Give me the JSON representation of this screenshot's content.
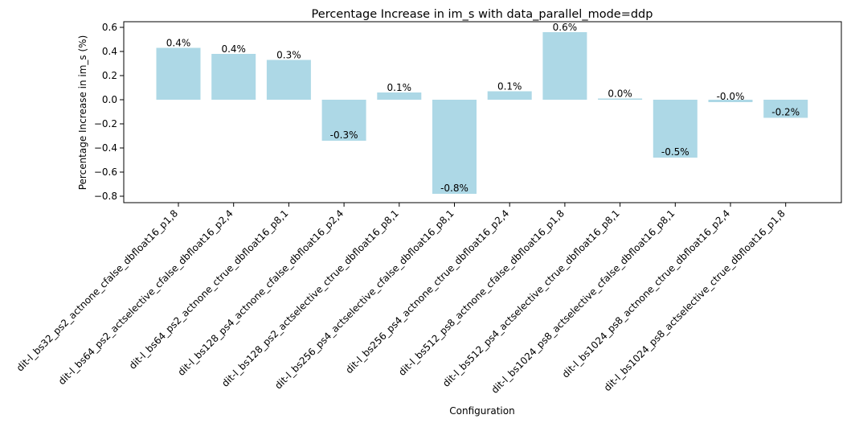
{
  "chart_data": {
    "type": "bar",
    "title": "Percentage Increase in im_s with data_parallel_mode=ddp",
    "xlabel": "Configuration",
    "ylabel": "Percentage Increase in im_s (%)",
    "ylim": [
      -0.85,
      0.63
    ],
    "yticks": [
      0.6,
      0.4,
      0.2,
      0.0,
      -0.2,
      -0.4,
      -0.6,
      -0.8
    ],
    "ytick_labels": [
      "0.6",
      "0.4",
      "0.2",
      "0.0",
      "−0.2",
      "−0.4",
      "−0.6",
      "−0.8"
    ],
    "bar_color": "#add8e6",
    "categories": [
      "dit-l_bs32_ps2_actnone_cfalse_dbfloat16_p1,8",
      "dit-l_bs64_ps2_actselective_cfalse_dbfloat16_p2,4",
      "dit-l_bs64_ps2_actnone_ctrue_dbfloat16_p8,1",
      "dit-l_bs128_ps4_actnone_cfalse_dbfloat16_p2,4",
      "dit-l_bs128_ps2_actselective_ctrue_dbfloat16_p8,1",
      "dit-l_bs256_ps4_actselective_cfalse_dbfloat16_p8,1",
      "dit-l_bs256_ps4_actnone_ctrue_dbfloat16_p2,4",
      "dit-l_bs512_ps8_actnone_cfalse_dbfloat16_p1,8",
      "dit-l_bs512_ps4_actselective_ctrue_dbfloat16_p8,1",
      "dit-l_bs1024_ps8_actselective_cfalse_dbfloat16_p8,1",
      "dit-l_bs1024_ps8_actnone_ctrue_dbfloat16_p2,4",
      "dit-l_bs1024_ps8_actselective_ctrue_dbfloat16_p1,8"
    ],
    "values": [
      0.43,
      0.38,
      0.33,
      -0.34,
      0.06,
      -0.78,
      0.07,
      0.56,
      0.01,
      -0.48,
      -0.02,
      -0.15
    ],
    "data_labels": [
      "0.4%",
      "0.4%",
      "0.3%",
      "-0.3%",
      "0.1%",
      "-0.8%",
      "0.1%",
      "0.6%",
      "0.0%",
      "-0.5%",
      "-0.0%",
      "-0.2%"
    ]
  }
}
